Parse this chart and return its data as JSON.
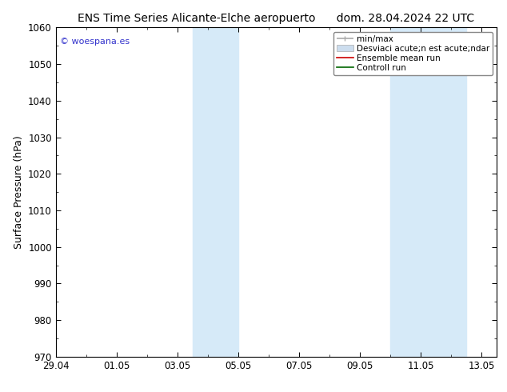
{
  "title_left": "ENS Time Series Alicante-Elche aeropuerto",
  "title_right": "dom. 28.04.2024 22 UTC",
  "ylabel": "Surface Pressure (hPa)",
  "ylim": [
    970,
    1060
  ],
  "yticks": [
    970,
    980,
    990,
    1000,
    1010,
    1020,
    1030,
    1040,
    1050,
    1060
  ],
  "xlim": [
    0,
    14.5
  ],
  "xtick_labels": [
    "29.04",
    "01.05",
    "03.05",
    "05.05",
    "07.05",
    "09.05",
    "11.05",
    "13.05"
  ],
  "xtick_positions": [
    0,
    2,
    4,
    6,
    8,
    10,
    12,
    14
  ],
  "shade_bands": [
    {
      "start": 4.5,
      "end": 6.0
    },
    {
      "start": 11.0,
      "end": 12.0
    },
    {
      "start": 12.0,
      "end": 13.5
    }
  ],
  "shade_color": "#d6eaf8",
  "background_color": "#ffffff",
  "copyright_text": "© woespana.es",
  "copyright_color": "#3333cc",
  "legend_label_minmax": "min/max",
  "legend_label_std": "Desviaci acute;n est acute;ndar",
  "legend_label_ens": "Ensemble mean run",
  "legend_label_ctrl": "Controll run",
  "legend_color_minmax": "#aaaaaa",
  "legend_color_std": "#ccddee",
  "legend_color_ens": "#cc0000",
  "legend_color_ctrl": "#006600",
  "title_fontsize": 10,
  "axis_label_fontsize": 9,
  "tick_fontsize": 8.5,
  "legend_fontsize": 7.5
}
